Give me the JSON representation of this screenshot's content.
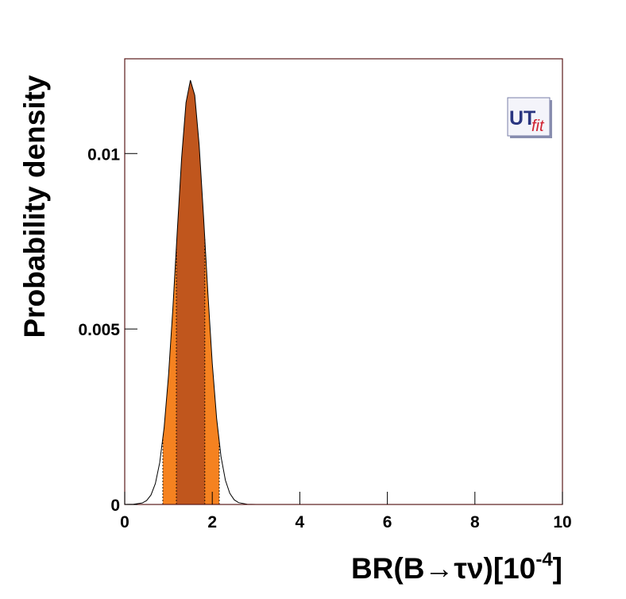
{
  "chart_data": {
    "type": "area",
    "ylabel": "Probability density",
    "xlabel": [
      "BR(B→τν)[10",
      "-4",
      "]"
    ],
    "logo": [
      "UT",
      "fit"
    ],
    "x": [
      0,
      0.2,
      0.4,
      0.5,
      0.6,
      0.7,
      0.8,
      0.9,
      1.0,
      1.1,
      1.2,
      1.3,
      1.4,
      1.5,
      1.6,
      1.7,
      1.8,
      1.9,
      2.0,
      2.1,
      2.2,
      2.3,
      2.4,
      2.5,
      2.6,
      2.8,
      3.0,
      10
    ],
    "values": [
      0,
      4.6e-06,
      4.22e-05,
      0.000112,
      0.00027,
      0.000595,
      0.001195,
      0.00219,
      0.00367,
      0.00559,
      0.00778,
      0.00988,
      0.01145,
      0.01209,
      0.01166,
      0.01025,
      0.00822,
      0.00602,
      0.00402,
      0.00245,
      0.00136,
      0.00069,
      0.00032,
      0.000134,
      5.2e-05,
      5.8e-06,
      0,
      0
    ],
    "color": "#000000",
    "intervals": [
      {
        "color": "#f58220",
        "range": [
          0.87,
          2.16
        ]
      },
      {
        "color": "#c0561d",
        "range": [
          1.18,
          1.83
        ]
      }
    ],
    "xlim": [
      0,
      10
    ],
    "xticks": [
      0,
      2,
      4,
      6,
      8,
      10
    ],
    "ylim": [
      0,
      0.0127
    ],
    "yticks": [
      0,
      0.005,
      0.01
    ]
  }
}
